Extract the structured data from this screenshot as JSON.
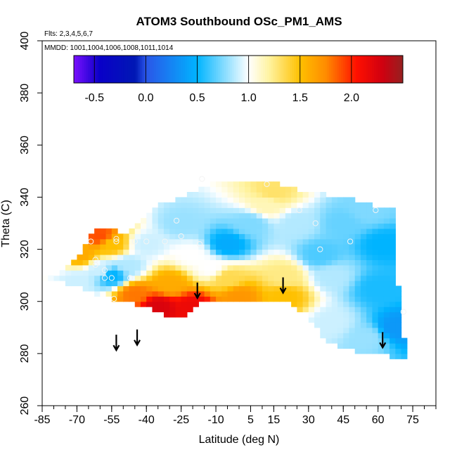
{
  "chart_data": {
    "type": "heatmap",
    "title": "ATOM3 Southbound OSc_PM1_AMS",
    "subtitle_flights": "Flts: 2,3,4,5,6,7",
    "subtitle_dates": "MMDD: 1001,1004,1006,1008,1011,1014",
    "xlabel": "Latitude (deg N)",
    "ylabel": "Theta (C)",
    "xlim": [
      -85,
      85
    ],
    "ylim": [
      260,
      400
    ],
    "x_ticks": [
      -85,
      -70,
      -55,
      -40,
      -25,
      -10,
      5,
      15,
      30,
      45,
      60,
      75
    ],
    "x_minor_step": 5,
    "y_ticks": [
      260,
      280,
      300,
      320,
      340,
      360,
      380,
      400
    ],
    "colorbar": {
      "range": [
        -0.7,
        2.5
      ],
      "ticks": [
        -0.5,
        0.0,
        0.5,
        1.0,
        1.5,
        2.0
      ],
      "tick_labels": [
        "-0.5",
        "0.0",
        "0.5",
        "1.0",
        "1.5",
        "2.0"
      ],
      "colors": [
        {
          "v": -0.7,
          "c": "#7b10ff"
        },
        {
          "v": -0.45,
          "c": "#0a00c8"
        },
        {
          "v": -0.1,
          "c": "#0018b4"
        },
        {
          "v": 0.0,
          "c": "#2a55e8"
        },
        {
          "v": 0.5,
          "c": "#00b4ff"
        },
        {
          "v": 1.0,
          "c": "#ffffff"
        },
        {
          "v": 1.2,
          "c": "#fff3a0"
        },
        {
          "v": 1.5,
          "c": "#ffc000"
        },
        {
          "v": 1.75,
          "c": "#ff8c00"
        },
        {
          "v": 2.05,
          "c": "#ff1000"
        },
        {
          "v": 2.3,
          "c": "#d00010"
        },
        {
          "v": 2.5,
          "c": "#952020"
        }
      ]
    },
    "domain_outline": [
      [
        -85,
        309
      ],
      [
        -72,
        314
      ],
      [
        -63,
        327
      ],
      [
        -57,
        329
      ],
      [
        -50,
        326
      ],
      [
        -37,
        336
      ],
      [
        -12,
        345
      ],
      [
        10,
        347
      ],
      [
        25,
        343
      ],
      [
        45,
        340
      ],
      [
        62,
        336
      ],
      [
        67,
        335
      ],
      [
        67,
        321
      ],
      [
        68,
        311
      ],
      [
        70,
        300
      ],
      [
        71,
        288
      ],
      [
        72,
        279
      ],
      [
        70,
        278
      ],
      [
        62,
        280
      ],
      [
        52,
        280
      ],
      [
        38,
        285
      ],
      [
        28,
        296
      ],
      [
        22,
        299
      ],
      [
        10,
        300
      ],
      [
        -10,
        300
      ],
      [
        -17,
        299
      ],
      [
        -22,
        295
      ],
      [
        -29,
        294
      ],
      [
        -38,
        297
      ],
      [
        -50,
        300
      ],
      [
        -60,
        302
      ],
      [
        -70,
        306
      ]
    ],
    "field_anchors": [
      {
        "lat": -68,
        "theta": 318,
        "value": 1.6
      },
      {
        "lat": -60,
        "theta": 325,
        "value": 1.9
      },
      {
        "lat": -55,
        "theta": 322,
        "value": 1.5
      },
      {
        "lat": -60,
        "theta": 312,
        "value": 0.9
      },
      {
        "lat": -55,
        "theta": 310,
        "value": 0.5
      },
      {
        "lat": -70,
        "theta": 308,
        "value": 0.9
      },
      {
        "lat": -48,
        "theta": 314,
        "value": 0.85
      },
      {
        "lat": -40,
        "theta": 322,
        "value": 0.9
      },
      {
        "lat": -25,
        "theta": 330,
        "value": 0.8
      },
      {
        "lat": -20,
        "theta": 318,
        "value": 1.0
      },
      {
        "lat": -5,
        "theta": 322,
        "value": 0.45
      },
      {
        "lat": 5,
        "theta": 330,
        "value": 0.75
      },
      {
        "lat": 15,
        "theta": 342,
        "value": 1.3
      },
      {
        "lat": 12,
        "theta": 337,
        "value": 1.15
      },
      {
        "lat": 25,
        "theta": 330,
        "value": 0.85
      },
      {
        "lat": 35,
        "theta": 318,
        "value": 0.65
      },
      {
        "lat": 45,
        "theta": 330,
        "value": 0.7
      },
      {
        "lat": 55,
        "theta": 335,
        "value": 0.75
      },
      {
        "lat": 62,
        "theta": 322,
        "value": 0.5
      },
      {
        "lat": 60,
        "theta": 305,
        "value": 0.55
      },
      {
        "lat": 68,
        "theta": 290,
        "value": 0.35
      },
      {
        "lat": 55,
        "theta": 286,
        "value": 0.8
      },
      {
        "lat": 40,
        "theta": 292,
        "value": 0.9
      },
      {
        "lat": 20,
        "theta": 302,
        "value": 1.5
      },
      {
        "lat": 0,
        "theta": 302,
        "value": 1.7
      },
      {
        "lat": -20,
        "theta": 298,
        "value": 2.15
      },
      {
        "lat": -35,
        "theta": 298,
        "value": 2.25
      },
      {
        "lat": -45,
        "theta": 303,
        "value": 1.8
      },
      {
        "lat": -30,
        "theta": 307,
        "value": 1.6
      },
      {
        "lat": -5,
        "theta": 309,
        "value": 1.35
      },
      {
        "lat": 20,
        "theta": 310,
        "value": 1.25
      },
      {
        "lat": -12,
        "theta": 313,
        "value": 1.0
      },
      {
        "lat": 40,
        "theta": 310,
        "value": 0.85
      }
    ],
    "sample_points": [
      [
        -64,
        323
      ],
      [
        -62,
        316
      ],
      [
        -62,
        314
      ],
      [
        -58,
        312
      ],
      [
        -58,
        309
      ],
      [
        -55,
        309
      ],
      [
        -53,
        323
      ],
      [
        -53,
        324
      ],
      [
        -47,
        309
      ],
      [
        -45,
        323
      ],
      [
        -40,
        323
      ],
      [
        -32,
        323
      ],
      [
        -27,
        331
      ],
      [
        -25,
        325
      ],
      [
        -17,
        322
      ],
      [
        -16,
        347
      ],
      [
        12,
        345
      ],
      [
        26,
        335
      ],
      [
        33,
        330
      ],
      [
        35,
        320
      ],
      [
        48,
        323
      ],
      [
        59,
        335
      ],
      [
        -54,
        301
      ],
      [
        71,
        296
      ]
    ],
    "tropopause_arrows": [
      {
        "lat": -53,
        "theta": 284
      },
      {
        "lat": -44,
        "theta": 286
      },
      {
        "lat": -18,
        "theta": 304
      },
      {
        "lat": 19,
        "theta": 306
      },
      {
        "lat": 62,
        "theta": 285
      }
    ]
  }
}
